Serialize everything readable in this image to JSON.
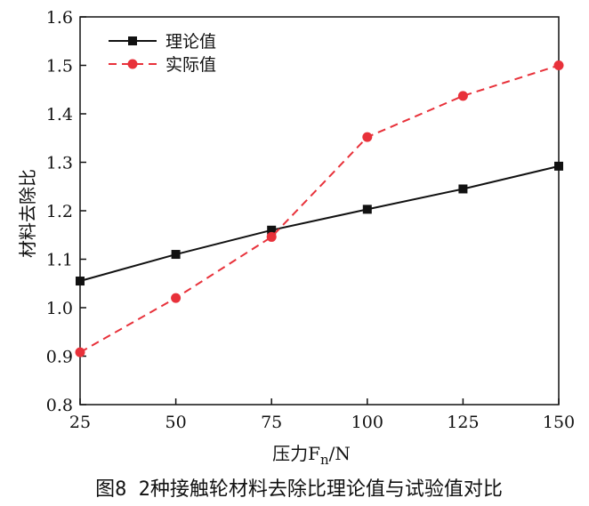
{
  "chart_data": {
    "type": "line",
    "x": [
      25,
      50,
      75,
      100,
      125,
      150
    ],
    "xticks": [
      "25",
      "50",
      "75",
      "100",
      "125",
      "150"
    ],
    "yticks": [
      "0.8",
      "0.9",
      "1.0",
      "1.1",
      "1.2",
      "1.3",
      "1.4",
      "1.5",
      "1.6"
    ],
    "xlim": [
      25,
      150
    ],
    "ylim": [
      0.8,
      1.6
    ],
    "xlabel": "压力F",
    "xlabel_subscript": "n",
    "xlabel_unit": "/N",
    "ylabel": "材料去除比",
    "series": [
      {
        "name": "理论值",
        "values": [
          1.055,
          1.11,
          1.16,
          1.203,
          1.245,
          1.292
        ],
        "color": "#111111",
        "line_style": "solid",
        "marker": "square"
      },
      {
        "name": "实际值",
        "values": [
          0.908,
          1.02,
          1.146,
          1.352,
          1.437,
          1.5
        ],
        "color": "#e8313a",
        "line_style": "dashed",
        "marker": "circle"
      }
    ],
    "legend_position": "top-left",
    "grid": false
  },
  "caption": "图8 2种接触轮材料去除比理论值与试验值对比"
}
